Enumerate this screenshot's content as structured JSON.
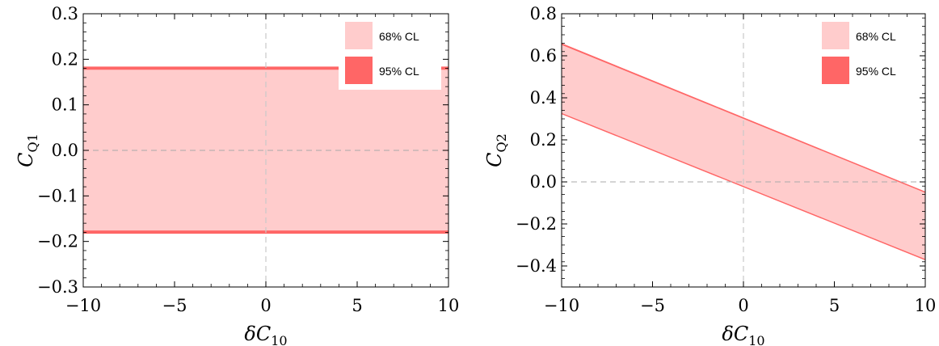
{
  "chart_data": [
    {
      "type": "area",
      "xlabel": "δC",
      "xlabel_sub": "10",
      "ylabel": "C",
      "ylabel_sub": "Q1",
      "xlim": [
        -10,
        10
      ],
      "ylim": [
        -0.3,
        0.3
      ],
      "xticks": [
        -10,
        -5,
        0,
        5,
        10
      ],
      "xtick_labels": [
        "−10",
        "−5",
        "0",
        "5",
        "10"
      ],
      "yticks": [
        -0.3,
        -0.2,
        -0.1,
        0.0,
        0.1,
        0.2,
        0.3
      ],
      "ytick_labels": [
        "−0.3",
        "−0.2",
        "−0.1",
        "0.0",
        "0.1",
        "0.2",
        "0.3"
      ],
      "grid": false,
      "reference_lines": {
        "x": 0,
        "y": 0
      },
      "legend": {
        "placement": "top-right",
        "entries": [
          "68% CL",
          "95% CL"
        ]
      },
      "series": [
        {
          "name": "68% CL",
          "x": [
            -10,
            10
          ],
          "lower": [
            -0.176,
            -0.176
          ],
          "upper": [
            0.177,
            0.177
          ]
        },
        {
          "name": "95% CL",
          "x": [
            -10,
            10
          ],
          "lower": [
            -0.183,
            -0.183
          ],
          "upper": [
            0.184,
            0.184
          ]
        }
      ]
    },
    {
      "type": "area",
      "xlabel": "δC",
      "xlabel_sub": "10",
      "ylabel": "C",
      "ylabel_sub": "Q2",
      "xlim": [
        -10,
        10
      ],
      "ylim": [
        -0.5,
        0.8
      ],
      "xticks": [
        -10,
        -5,
        0,
        5,
        10
      ],
      "xtick_labels": [
        "−10",
        "−5",
        "0",
        "5",
        "10"
      ],
      "yticks": [
        -0.4,
        -0.2,
        0.0,
        0.2,
        0.4,
        0.6,
        0.8
      ],
      "ytick_labels": [
        "−0.4",
        "−0.2",
        "0.0",
        "0.2",
        "0.4",
        "0.6",
        "0.8"
      ],
      "grid": false,
      "reference_lines": {
        "x": 0,
        "y": 0
      },
      "legend": {
        "placement": "top-right",
        "entries": [
          "68% CL",
          "95% CL"
        ]
      },
      "series": [
        {
          "name": "68% CL",
          "x": [
            -10,
            10
          ],
          "lower": [
            0.328,
            -0.367
          ],
          "upper": [
            0.652,
            -0.052
          ]
        },
        {
          "name": "95% CL",
          "x": [
            -10,
            10
          ],
          "lower": [
            0.322,
            -0.373
          ],
          "upper": [
            0.66,
            -0.046
          ]
        }
      ]
    }
  ],
  "colors": {
    "cl68": "#ffcccc",
    "cl95": "#ff6666",
    "reference_line": "#c8c8c8",
    "axes": "#000000"
  }
}
